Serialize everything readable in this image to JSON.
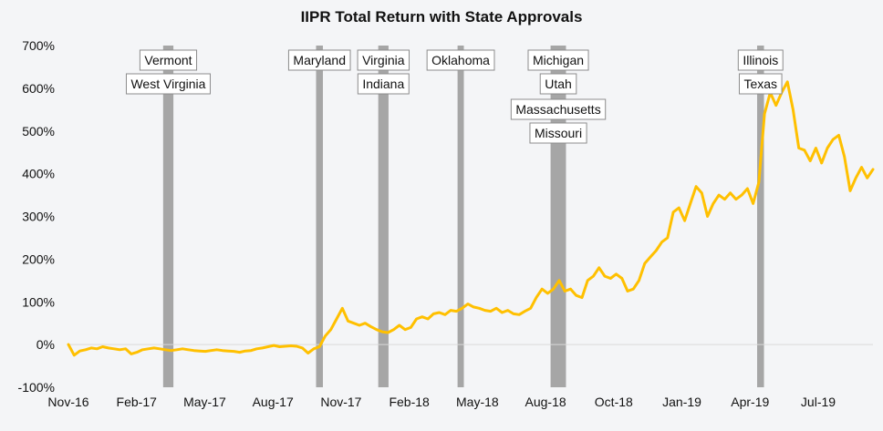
{
  "chart_data": {
    "type": "line",
    "title": "IIPR Total Return with State Approvals",
    "xlabel": "",
    "ylabel": "",
    "ylim": [
      -1.0,
      7.0
    ],
    "y_ticks": [
      -1.0,
      0.0,
      1.0,
      2.0,
      3.0,
      4.0,
      5.0,
      6.0,
      7.0
    ],
    "y_tick_labels": [
      "-100%",
      "0%",
      "100%",
      "200%",
      "300%",
      "400%",
      "500%",
      "600%",
      "700%"
    ],
    "x_tick_labels": [
      "Nov-16",
      "Feb-17",
      "May-17",
      "Aug-17",
      "Nov-17",
      "Feb-18",
      "May-18",
      "Aug-18",
      "Oct-18",
      "Jan-19",
      "Apr-19",
      "Jul-19"
    ],
    "grid": false,
    "line_color": "#ffc000",
    "band_color": "#a6a6a6",
    "series": [
      {
        "values": [
          [
            0,
            0.0
          ],
          [
            1,
            -0.25
          ],
          [
            2,
            -0.15
          ],
          [
            3,
            -0.12
          ],
          [
            4,
            -0.08
          ],
          [
            5,
            -0.1
          ],
          [
            6,
            -0.05
          ],
          [
            7,
            -0.08
          ],
          [
            8,
            -0.1
          ],
          [
            9,
            -0.12
          ],
          [
            10,
            -0.1
          ],
          [
            11,
            -0.22
          ],
          [
            12,
            -0.18
          ],
          [
            13,
            -0.12
          ],
          [
            14,
            -0.1
          ],
          [
            15,
            -0.08
          ],
          [
            16,
            -0.1
          ],
          [
            17,
            -0.12
          ],
          [
            18,
            -0.14
          ],
          [
            19,
            -0.12
          ],
          [
            20,
            -0.1
          ],
          [
            21,
            -0.12
          ],
          [
            22,
            -0.14
          ],
          [
            23,
            -0.15
          ],
          [
            24,
            -0.16
          ],
          [
            25,
            -0.14
          ],
          [
            26,
            -0.12
          ],
          [
            27,
            -0.14
          ],
          [
            28,
            -0.15
          ],
          [
            29,
            -0.16
          ],
          [
            30,
            -0.18
          ],
          [
            31,
            -0.15
          ],
          [
            32,
            -0.14
          ],
          [
            33,
            -0.1
          ],
          [
            34,
            -0.08
          ],
          [
            35,
            -0.05
          ],
          [
            36,
            -0.02
          ],
          [
            37,
            -0.05
          ],
          [
            38,
            -0.04
          ],
          [
            39,
            -0.03
          ],
          [
            40,
            -0.04
          ],
          [
            41,
            -0.08
          ],
          [
            42,
            -0.2
          ],
          [
            43,
            -0.1
          ],
          [
            44,
            -0.05
          ],
          [
            45,
            0.2
          ],
          [
            46,
            0.35
          ],
          [
            47,
            0.6
          ],
          [
            48,
            0.85
          ],
          [
            49,
            0.55
          ],
          [
            50,
            0.5
          ],
          [
            51,
            0.45
          ],
          [
            52,
            0.5
          ],
          [
            53,
            0.42
          ],
          [
            54,
            0.35
          ],
          [
            55,
            0.3
          ],
          [
            56,
            0.28
          ],
          [
            57,
            0.35
          ],
          [
            58,
            0.45
          ],
          [
            59,
            0.35
          ],
          [
            60,
            0.4
          ],
          [
            61,
            0.6
          ],
          [
            62,
            0.65
          ],
          [
            63,
            0.6
          ],
          [
            64,
            0.72
          ],
          [
            65,
            0.75
          ],
          [
            66,
            0.7
          ],
          [
            67,
            0.8
          ],
          [
            68,
            0.78
          ],
          [
            69,
            0.85
          ],
          [
            70,
            0.95
          ],
          [
            71,
            0.88
          ],
          [
            72,
            0.85
          ],
          [
            73,
            0.8
          ],
          [
            74,
            0.78
          ],
          [
            75,
            0.85
          ],
          [
            76,
            0.75
          ],
          [
            77,
            0.8
          ],
          [
            78,
            0.72
          ],
          [
            79,
            0.7
          ],
          [
            80,
            0.78
          ],
          [
            81,
            0.85
          ],
          [
            82,
            1.1
          ],
          [
            83,
            1.3
          ],
          [
            84,
            1.2
          ],
          [
            85,
            1.3
          ],
          [
            86,
            1.5
          ],
          [
            87,
            1.25
          ],
          [
            88,
            1.3
          ],
          [
            89,
            1.15
          ],
          [
            90,
            1.1
          ],
          [
            91,
            1.5
          ],
          [
            92,
            1.6
          ],
          [
            93,
            1.8
          ],
          [
            94,
            1.6
          ],
          [
            95,
            1.55
          ],
          [
            96,
            1.65
          ],
          [
            97,
            1.55
          ],
          [
            98,
            1.25
          ],
          [
            99,
            1.3
          ],
          [
            100,
            1.5
          ],
          [
            101,
            1.9
          ],
          [
            102,
            2.05
          ],
          [
            103,
            2.2
          ],
          [
            104,
            2.4
          ],
          [
            105,
            2.5
          ],
          [
            106,
            3.1
          ],
          [
            107,
            3.2
          ],
          [
            108,
            2.9
          ],
          [
            109,
            3.3
          ],
          [
            110,
            3.7
          ],
          [
            111,
            3.55
          ],
          [
            112,
            3.0
          ],
          [
            113,
            3.3
          ],
          [
            114,
            3.5
          ],
          [
            115,
            3.4
          ],
          [
            116,
            3.55
          ],
          [
            117,
            3.4
          ],
          [
            118,
            3.5
          ],
          [
            119,
            3.65
          ],
          [
            120,
            3.3
          ],
          [
            121,
            3.8
          ],
          [
            122,
            5.4
          ],
          [
            123,
            5.9
          ],
          [
            124,
            5.6
          ],
          [
            125,
            5.9
          ],
          [
            126,
            6.15
          ],
          [
            127,
            5.5
          ],
          [
            128,
            4.6
          ],
          [
            129,
            4.55
          ],
          [
            130,
            4.3
          ],
          [
            131,
            4.6
          ],
          [
            132,
            4.25
          ],
          [
            133,
            4.6
          ],
          [
            134,
            4.8
          ],
          [
            135,
            4.9
          ],
          [
            136,
            4.4
          ],
          [
            137,
            3.6
          ],
          [
            138,
            3.9
          ],
          [
            139,
            4.15
          ],
          [
            140,
            3.9
          ],
          [
            141,
            4.1
          ]
        ]
      }
    ],
    "bands": [
      {
        "id": "b1",
        "x0": 16.6,
        "x1": 18.4
      },
      {
        "id": "b2",
        "x0": 43.4,
        "x1": 44.6
      },
      {
        "id": "b3",
        "x0": 54.3,
        "x1": 56.1
      },
      {
        "id": "b4",
        "x0": 68.2,
        "x1": 69.3
      },
      {
        "id": "b5",
        "x0": 84.5,
        "x1": 87.2
      },
      {
        "id": "b6",
        "x0": 120.7,
        "x1": 121.9
      }
    ],
    "annotations": [
      {
        "label": "Vermont",
        "band": "b1",
        "row": 0
      },
      {
        "label": "West Virginia",
        "band": "b1",
        "row": 1
      },
      {
        "label": "Maryland",
        "band": "b2",
        "row": 0
      },
      {
        "label": "Virginia",
        "band": "b3",
        "row": 0
      },
      {
        "label": "Indiana",
        "band": "b3",
        "row": 1
      },
      {
        "label": "Oklahoma",
        "band": "b4",
        "row": 0
      },
      {
        "label": "Michigan",
        "band": "b5",
        "row": 0
      },
      {
        "label": "Utah",
        "band": "b5",
        "row": 1
      },
      {
        "label": "Massachusetts",
        "band": "b5",
        "row": 2
      },
      {
        "label": "Missouri",
        "band": "b5",
        "row": 3
      },
      {
        "label": "Illinois",
        "band": "b6",
        "row": 0
      },
      {
        "label": "Texas",
        "band": "b6",
        "row": 1
      }
    ]
  }
}
